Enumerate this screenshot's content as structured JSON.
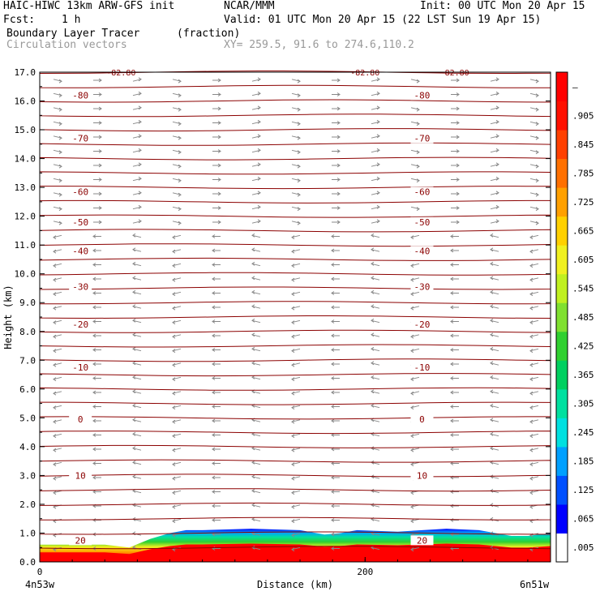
{
  "header": {
    "line1_left": "HAIC-HIWC 13km ARW-GFS init",
    "line1_mid": "NCAR/MMM",
    "line1_right": "Init: 00 UTC Mon 20 Apr 15",
    "fcst_label": "Fcst:",
    "fcst_value": "1 h",
    "valid": "Valid: 01 UTC Mon 20 Apr 15 (22 LST Sun 19 Apr 15)",
    "field1_name": "Boundary Layer Tracer",
    "field1_units": "(fraction)",
    "field2_name": "Circulation vectors",
    "xy_range": "XY= 259.5, 91.6 to 274.6,110.2"
  },
  "chart_data": {
    "type": "heatmap",
    "ylabel": "Height (km)",
    "xlabel": "Distance (km)",
    "ylim": [
      0,
      17
    ],
    "xlim": [
      0,
      314
    ],
    "y_ticks": [
      "0.0",
      "1.0",
      "2.0",
      "3.0",
      "4.0",
      "5.0",
      "6.0",
      "7.0",
      "8.0",
      "9.0",
      "10.0",
      "11.0",
      "12.0",
      "13.0",
      "14.0",
      "15.0",
      "16.0",
      "17.0"
    ],
    "x_ticks": [
      {
        "value": 0,
        "label": "0"
      },
      {
        "value": 200,
        "label": "200"
      }
    ],
    "x_end_labels": {
      "left": "4n53w",
      "right": "6n51w"
    },
    "colorbar": {
      "labels": [
        ".005",
        ".065",
        ".125",
        ".185",
        ".245",
        ".305",
        ".365",
        ".425",
        ".485",
        ".545",
        ".605",
        ".665",
        ".725",
        ".785",
        ".845",
        ".905",
        "–"
      ],
      "colors": [
        "#ffffff",
        "#0000ff",
        "#0050ff",
        "#00a0ff",
        "#00e0e0",
        "#00e0a0",
        "#00d060",
        "#30d030",
        "#80e030",
        "#c0f020",
        "#f0f020",
        "#ffd000",
        "#ffa000",
        "#ff7000",
        "#ff4000",
        "#ff1000",
        "#ff0000"
      ]
    },
    "temperature_contours": [
      {
        "value": "20",
        "y": 0.75
      },
      {
        "value": "10",
        "y": 3.0
      },
      {
        "value": "0",
        "y": 4.95
      },
      {
        "value": "-10",
        "y": 6.75
      },
      {
        "value": "-20",
        "y": 8.25
      },
      {
        "value": "-30",
        "y": 9.55
      },
      {
        "value": "-40",
        "y": 10.8
      },
      {
        "value": "-50",
        "y": 11.8
      },
      {
        "value": "-60",
        "y": 12.85
      },
      {
        "value": "-70",
        "y": 14.7
      },
      {
        "value": "-80",
        "y": 16.2
      }
    ],
    "extra_contour_labels": [
      "-82.80",
      "-82.80",
      "-82.80"
    ],
    "tracer_top": {
      "x": [
        0,
        40,
        55,
        68,
        80,
        90,
        100,
        130,
        160,
        175,
        185,
        195,
        220,
        250,
        270,
        290,
        300,
        314
      ],
      "y": [
        0.6,
        0.6,
        0.5,
        0.8,
        1.0,
        1.1,
        1.1,
        1.15,
        1.1,
        0.95,
        1.0,
        1.1,
        1.05,
        1.15,
        1.1,
        0.9,
        0.9,
        1.0
      ]
    },
    "colors": {
      "contour": "#8b0000",
      "vector": "#888888",
      "tracer_core": "#ff0000"
    }
  }
}
